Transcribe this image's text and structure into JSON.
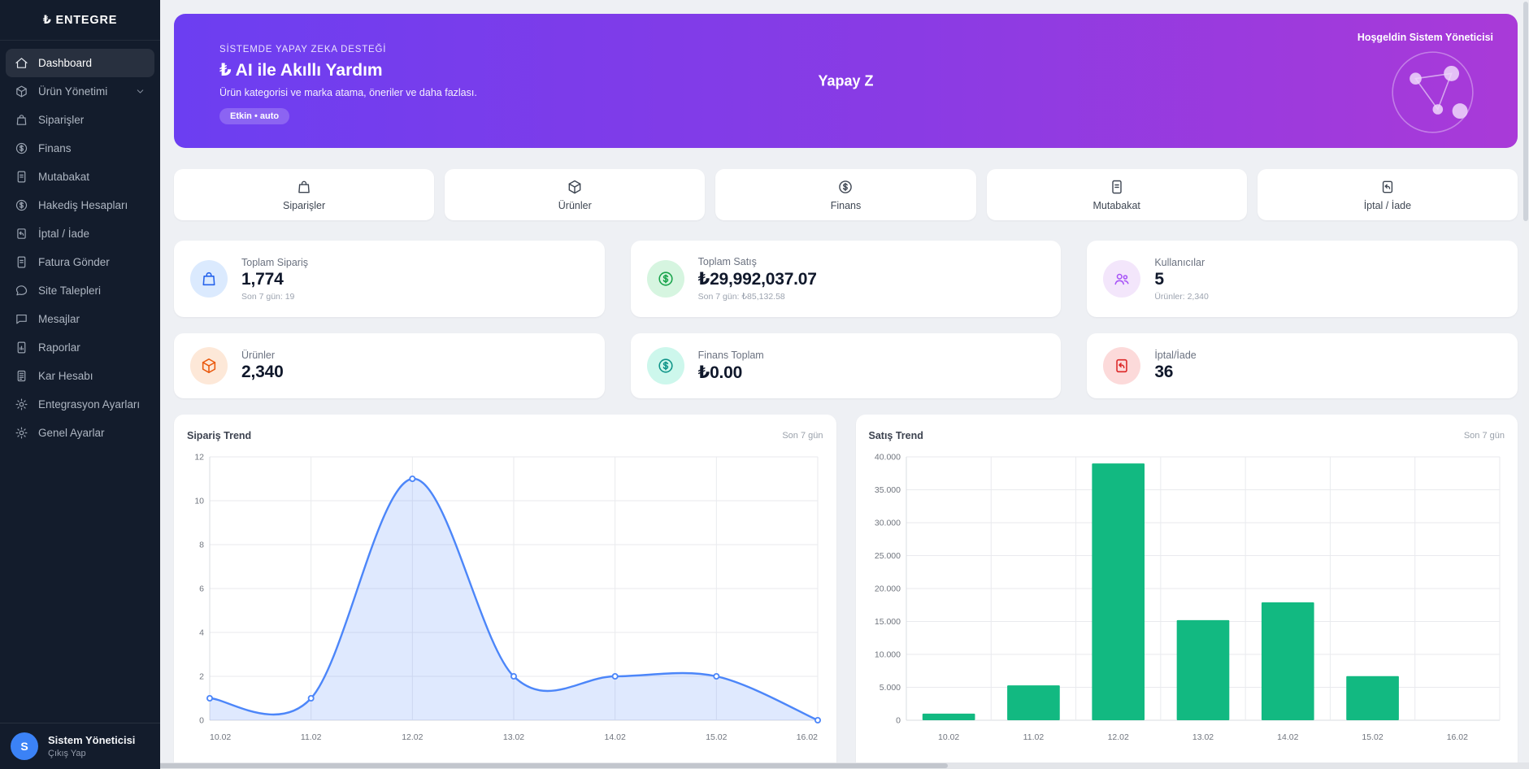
{
  "app": {
    "logo_text": "₺ ENTEGRE"
  },
  "sidebar": {
    "items": [
      {
        "key": "dashboard",
        "label": "Dashboard",
        "icon": "home",
        "active": true
      },
      {
        "key": "urun-yonetimi",
        "label": "Ürün Yönetimi",
        "icon": "package",
        "expandable": true
      },
      {
        "key": "siparisler",
        "label": "Siparişler",
        "icon": "shopping-bag"
      },
      {
        "key": "finans",
        "label": "Finans",
        "icon": "coin"
      },
      {
        "key": "mutabakat",
        "label": "Mutabakat",
        "icon": "file-text"
      },
      {
        "key": "hakedis-hesaplari",
        "label": "Hakediş Hesapları",
        "icon": "coin"
      },
      {
        "key": "iptal-iade",
        "label": "İptal / İade",
        "icon": "return"
      },
      {
        "key": "fatura-gonder",
        "label": "Fatura Gönder",
        "icon": "file-text"
      },
      {
        "key": "site-talepleri",
        "label": "Site Talepleri",
        "icon": "chat"
      },
      {
        "key": "mesajlar",
        "label": "Mesajlar",
        "icon": "chat-square"
      },
      {
        "key": "raporlar",
        "label": "Raporlar",
        "icon": "report"
      },
      {
        "key": "kar-hesabi",
        "label": "Kar Hesabı",
        "icon": "calculator"
      },
      {
        "key": "entegrasyon-ayarlari",
        "label": "Entegrasyon Ayarları",
        "icon": "gear"
      },
      {
        "key": "genel-ayarlar",
        "label": "Genel Ayarlar",
        "icon": "gear"
      }
    ],
    "user": {
      "initial": "S",
      "name": "Sistem Yöneticisi",
      "action": "Çıkış Yap",
      "avatar_color": "#3b82f6"
    }
  },
  "banner": {
    "eyebrow": "SİSTEMDE YAPAY ZEKA DESTEĞİ",
    "title": "₺ AI ile Akıllı Yardım",
    "subtitle": "Ürün kategorisi ve marka atama, öneriler ve daha fazlası.",
    "badge": "Etkin • auto",
    "center_text": "Yapay Z",
    "welcome": "Hoşgeldin Sistem Yöneticisi",
    "gradient": [
      "#6c3ef1",
      "#a93ad8"
    ]
  },
  "quick_actions": [
    {
      "key": "siparisler",
      "label": "Siparişler",
      "icon": "shopping-bag"
    },
    {
      "key": "urunler",
      "label": "Ürünler",
      "icon": "package"
    },
    {
      "key": "finans",
      "label": "Finans",
      "icon": "coin"
    },
    {
      "key": "mutabakat",
      "label": "Mutabakat",
      "icon": "file-text"
    },
    {
      "key": "iptal-iade",
      "label": "İptal / İade",
      "icon": "return"
    }
  ],
  "stats": {
    "row1": [
      {
        "key": "toplam-siparis",
        "label": "Toplam Sipariş",
        "value": "1,774",
        "sub": "Son 7 gün: 19",
        "icon": "shopping-bag",
        "icon_bg": "#dbeafe",
        "icon_fg": "#2563eb"
      },
      {
        "key": "toplam-satis",
        "label": "Toplam Satış",
        "value": "₺29,992,037.07",
        "sub": "Son 7 gün: ₺85,132.58",
        "icon": "coin",
        "icon_bg": "#d6f5e0",
        "icon_fg": "#17a34a"
      },
      {
        "key": "kullanicilar",
        "label": "Kullanıcılar",
        "value": "5",
        "sub": "Ürünler: 2,340",
        "icon": "users",
        "icon_bg": "#f3e6fb",
        "icon_fg": "#a855f7"
      }
    ],
    "row2": [
      {
        "key": "urunler",
        "label": "Ürünler",
        "value": "2,340",
        "icon": "package",
        "icon_bg": "#fde8d8",
        "icon_fg": "#ea580c"
      },
      {
        "key": "finans-toplam",
        "label": "Finans Toplam",
        "value": "₺0.00",
        "icon": "coin",
        "icon_bg": "#cdf7ec",
        "icon_fg": "#0d9488"
      },
      {
        "key": "iptal-iade",
        "label": "İptal/İade",
        "value": "36",
        "icon": "return",
        "icon_bg": "#fcdada",
        "icon_fg": "#dc2626"
      }
    ]
  },
  "chart_data": [
    {
      "key": "siparis-trend",
      "type": "area",
      "title": "Sipariş Trend",
      "period": "Son 7 gün",
      "categories": [
        "10.02",
        "11.02",
        "12.02",
        "13.02",
        "14.02",
        "15.02",
        "16.02"
      ],
      "values": [
        1,
        1,
        11,
        2,
        2,
        2,
        0
      ],
      "ylim": [
        0,
        12
      ],
      "yticks": [
        0,
        2,
        4,
        6,
        8,
        10,
        12
      ],
      "ytick_labels": [
        "0",
        "2",
        "4",
        "6",
        "8",
        "10",
        "12"
      ],
      "grid": true,
      "legend": "none",
      "color": "#4c86f9",
      "fill": "rgba(76,134,249,0.18)"
    },
    {
      "key": "satis-trend",
      "type": "bar",
      "title": "Satış Trend",
      "period": "Son 7 gün",
      "categories": [
        "10.02",
        "11.02",
        "12.02",
        "13.02",
        "14.02",
        "15.02",
        "16.02"
      ],
      "values": [
        1000,
        5300,
        39000,
        15200,
        17900,
        6700,
        0
      ],
      "ylim": [
        0,
        40000
      ],
      "yticks": [
        0,
        5000,
        10000,
        15000,
        20000,
        25000,
        30000,
        35000,
        40000
      ],
      "ytick_labels": [
        "0",
        "5.000",
        "10.000",
        "15.000",
        "20.000",
        "25.000",
        "30.000",
        "35.000",
        "40.000"
      ],
      "grid": true,
      "legend": "none",
      "color": "#12b981"
    }
  ]
}
